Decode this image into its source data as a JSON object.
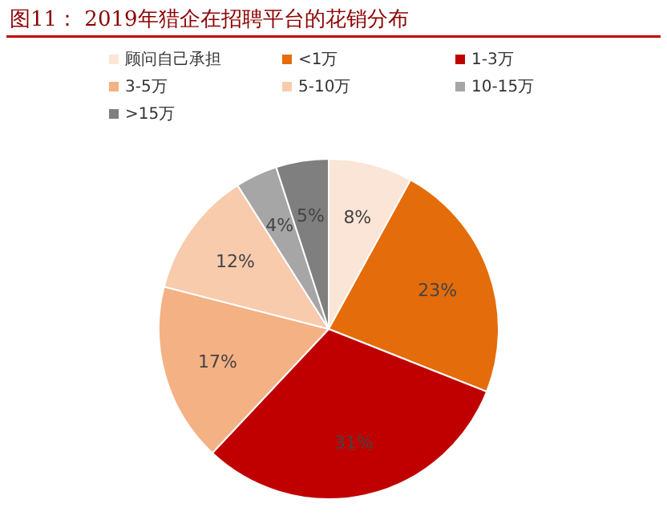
{
  "chart_data": {
    "type": "pie",
    "title": "图11：  2019年猎企在招聘平台的花销分布",
    "categories": [
      "顾问自己承担",
      "<1万",
      "1-3万",
      "3-5万",
      "5-10万",
      "10-15万",
      ">15万"
    ],
    "values": [
      8,
      23,
      31,
      17,
      12,
      4,
      5
    ],
    "colors": [
      "#fbe5d6",
      "#e46c0a",
      "#c00000",
      "#f4b183",
      "#f8cbad",
      "#a6a6a6",
      "#7f7f7f"
    ],
    "value_labels": [
      "8%",
      "23%",
      "31%",
      "17%",
      "12%",
      "4%",
      "5%"
    ],
    "legend": "top"
  }
}
